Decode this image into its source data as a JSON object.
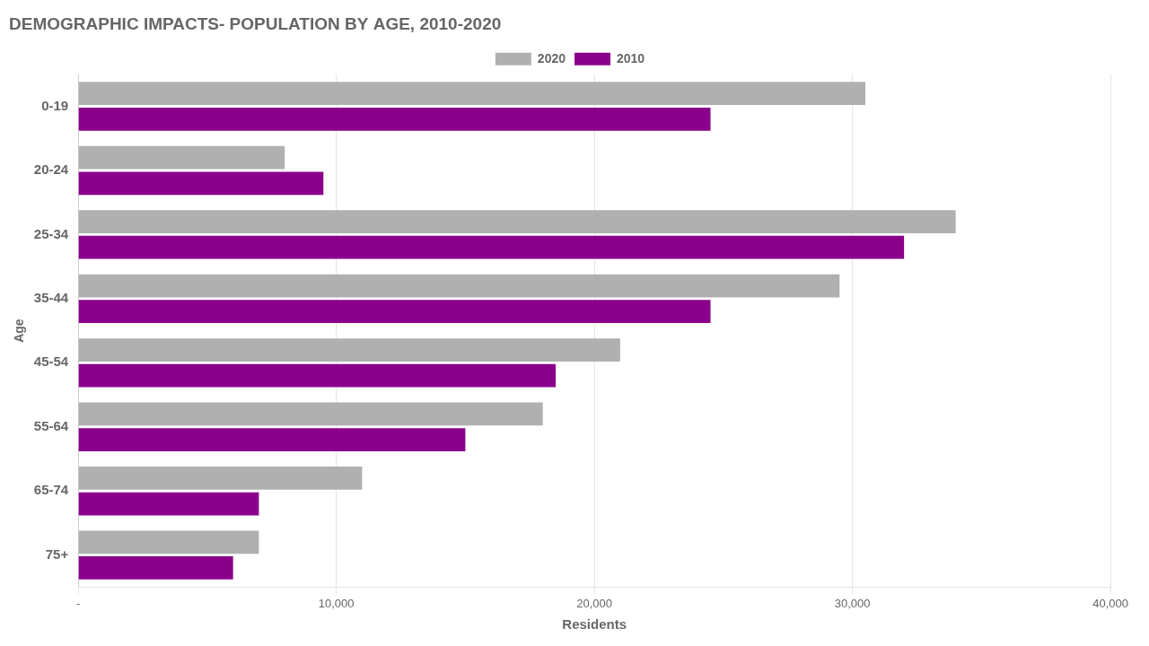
{
  "chart_data": {
    "type": "bar",
    "orientation": "horizontal",
    "title": "DEMOGRAPHIC IMPACTS- POPULATION BY AGE, 2010-2020",
    "categories": [
      "0-19",
      "20-24",
      "25-34",
      "35-44",
      "45-54",
      "55-64",
      "65-74",
      "75+"
    ],
    "series": [
      {
        "name": "2020",
        "color": "#b0b0b0",
        "values": [
          30500,
          8000,
          34000,
          29500,
          21000,
          18000,
          11000,
          7000
        ]
      },
      {
        "name": "2010",
        "color": "#8B008B",
        "values": [
          24500,
          9500,
          32000,
          24500,
          18500,
          15000,
          7000,
          6000
        ]
      }
    ],
    "xlabel": "Residents",
    "ylabel": "Age",
    "xlim": [
      0,
      40000
    ],
    "xticks": [
      {
        "value": 0,
        "label": "-"
      },
      {
        "value": 10000,
        "label": "10,000"
      },
      {
        "value": 20000,
        "label": "20,000"
      },
      {
        "value": 30000,
        "label": "30,000"
      },
      {
        "value": 40000,
        "label": "40,000"
      }
    ],
    "grid": true,
    "legend": "top"
  }
}
